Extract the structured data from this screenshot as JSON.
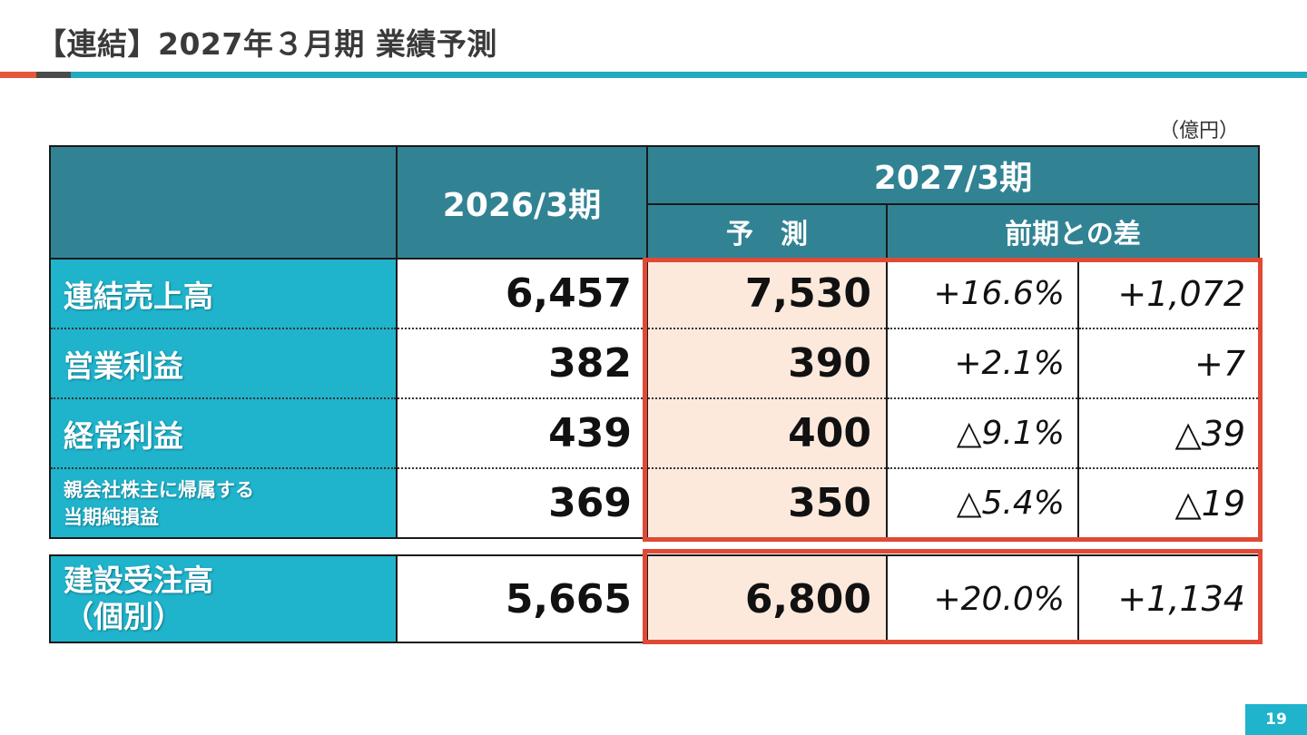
{
  "slide": {
    "title": "【連結】2027年３月期 業績予測",
    "unit": "（億円）",
    "page_number": "19",
    "colors": {
      "accent_red": "#e04a35",
      "header_teal": "#318394",
      "label_cyan": "#1fb3cc",
      "forecast_fill": "#fde9dc"
    }
  },
  "table": {
    "header": {
      "prev_period": "2026/3期",
      "current_period": "2027/3期",
      "forecast": "予　測",
      "yoy_diff": "前期との差"
    },
    "rows": [
      {
        "label": "連結売上高",
        "prev": "6,457",
        "forecast": "7,530",
        "pct": "+16.6%",
        "amount": "+1,072"
      },
      {
        "label": "営業利益",
        "prev": "382",
        "forecast": "390",
        "pct": "+2.1%",
        "amount": "+7"
      },
      {
        "label": "経常利益",
        "prev": "439",
        "forecast": "400",
        "pct": "△9.1%",
        "amount": "△39"
      },
      {
        "label_line1": "親会社株主に帰属する",
        "label_line2": "当期純損益",
        "prev": "369",
        "forecast": "350",
        "pct": "△5.4%",
        "amount": "△19"
      }
    ],
    "orders": {
      "label_line1": "建設受注高",
      "label_line2": "（個別）",
      "prev": "5,665",
      "forecast": "6,800",
      "pct": "+20.0%",
      "amount": "+1,134"
    }
  }
}
